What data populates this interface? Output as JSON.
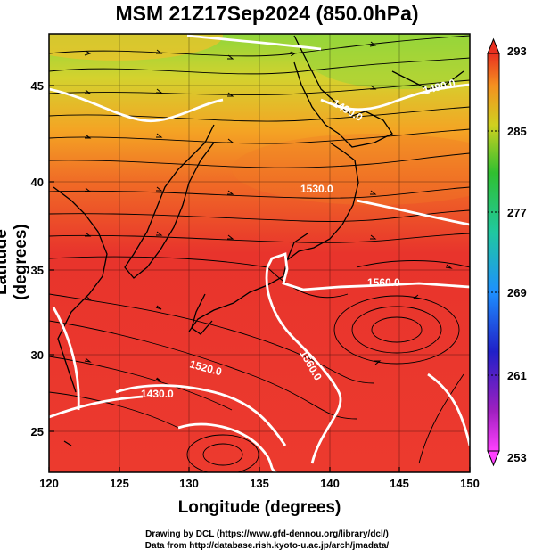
{
  "title": "MSM 21Z17Sep2024 (850.0hPa)",
  "xlabel": "Longitude (degrees)",
  "ylabel": "Latitude  (degrees)",
  "credits": {
    "line1": "Drawing by DCL (https://www.gfd-dennou.org/library/dcl/)",
    "line2": "Data from http://database.rish.kyoto-u.ac.jp/arch/jmadata/"
  },
  "x_ticks": [
    "120",
    "125",
    "130",
    "135",
    "140",
    "145",
    "150"
  ],
  "y_ticks": [
    "25",
    "30",
    "35",
    "40",
    "45"
  ],
  "colorbar": {
    "ticks": [
      "293",
      "285",
      "277",
      "269",
      "261",
      "253"
    ],
    "range": [
      253,
      293
    ]
  },
  "contour_labels": [
    "1530.0",
    "1560.0",
    "1560.0",
    "1520.0",
    "1490.0",
    "1490.0",
    "1430.0"
  ],
  "colors": {
    "warm": "#e8342c",
    "mid": "#f7a21d",
    "cool": "#3ec43a",
    "contour": "#ffffff"
  }
}
